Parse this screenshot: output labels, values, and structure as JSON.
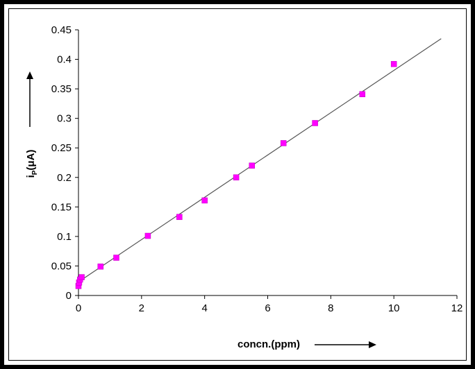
{
  "chart_data": {
    "type": "scatter",
    "title": "",
    "xlabel": "concn.(ppm)",
    "ylabel_main": "i",
    "ylabel_sub": "P",
    "ylabel_rest": "(μA)",
    "xlim": [
      0,
      12
    ],
    "ylim": [
      0,
      0.45
    ],
    "xticks": [
      0,
      2,
      4,
      6,
      8,
      10,
      12
    ],
    "yticks": [
      0,
      0.05,
      0.1,
      0.15,
      0.2,
      0.25,
      0.3,
      0.35,
      0.4,
      0.45
    ],
    "xtick_labels": [
      "0",
      "2",
      "4",
      "6",
      "8",
      "10",
      "12"
    ],
    "ytick_labels": [
      "0",
      "0.05",
      "0.1",
      "0.15",
      "0.2",
      "0.25",
      "0.3",
      "0.35",
      "0.4",
      "0.45"
    ],
    "grid": false,
    "legend": "none",
    "marker_color": "#ff00ff",
    "line_color": "#555555",
    "points": [
      {
        "x": 0.0,
        "y": 0.016
      },
      {
        "x": 0.02,
        "y": 0.022
      },
      {
        "x": 0.05,
        "y": 0.027
      },
      {
        "x": 0.1,
        "y": 0.031
      },
      {
        "x": 0.7,
        "y": 0.049
      },
      {
        "x": 1.2,
        "y": 0.064
      },
      {
        "x": 2.2,
        "y": 0.101
      },
      {
        "x": 3.2,
        "y": 0.133
      },
      {
        "x": 4.0,
        "y": 0.161
      },
      {
        "x": 5.0,
        "y": 0.2
      },
      {
        "x": 5.5,
        "y": 0.22
      },
      {
        "x": 6.5,
        "y": 0.258
      },
      {
        "x": 7.5,
        "y": 0.292
      },
      {
        "x": 9.0,
        "y": 0.341
      },
      {
        "x": 10.0,
        "y": 0.392
      }
    ],
    "trendline": {
      "x1": 0,
      "y1": 0.023,
      "x2": 11.5,
      "y2": 0.435
    }
  }
}
